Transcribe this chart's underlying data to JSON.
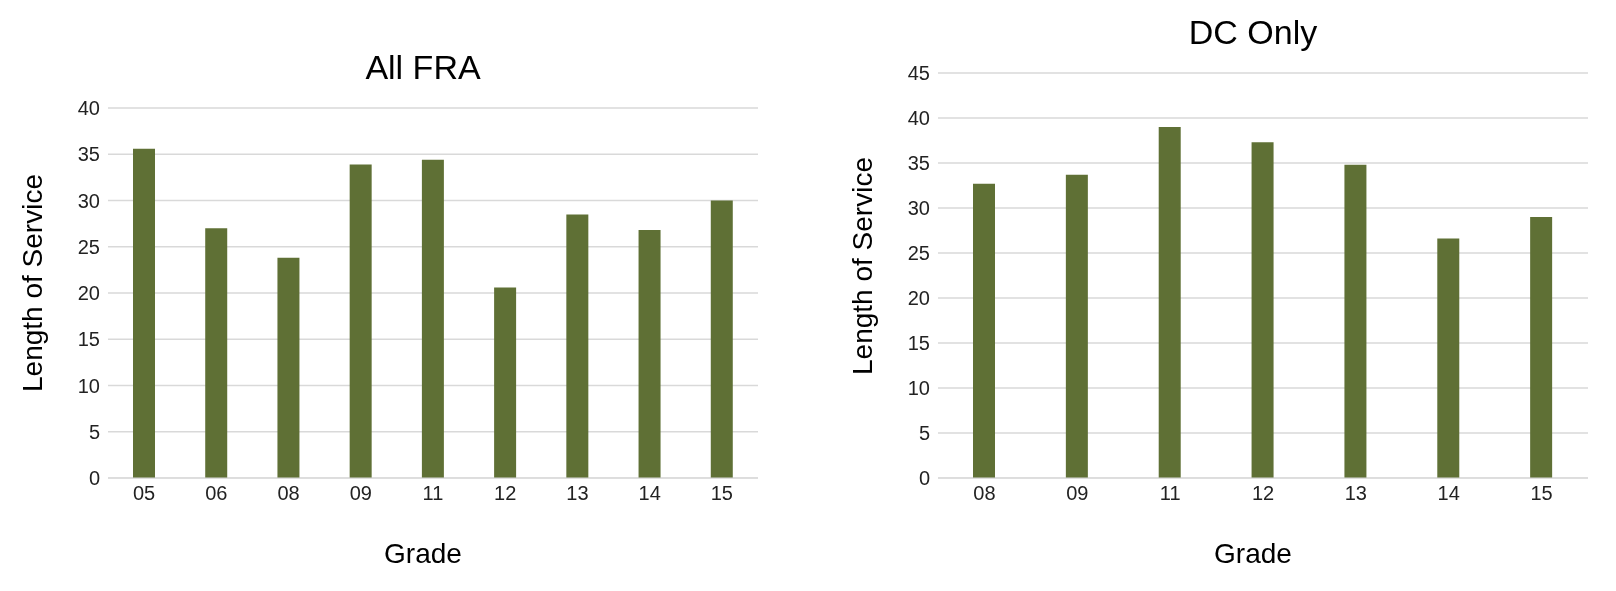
{
  "chart_data": [
    {
      "type": "bar",
      "title": "All FRA",
      "xlabel": "Grade",
      "ylabel": "Length of Service",
      "categories": [
        "05",
        "06",
        "08",
        "09",
        "11",
        "12",
        "13",
        "14",
        "15"
      ],
      "series": [
        {
          "color": "#5f7035",
          "values": [
            35.6,
            27.0,
            23.8,
            33.9,
            34.4,
            20.6,
            28.5,
            26.8,
            30.0
          ]
        }
      ],
      "ylim": [
        0,
        40
      ],
      "yticks": [
        0,
        5,
        10,
        15,
        20,
        25,
        30,
        35,
        40
      ],
      "grid": "y",
      "legend": false
    },
    {
      "type": "bar",
      "title": "DC Only",
      "xlabel": "Grade",
      "ylabel": "Length of Service",
      "categories": [
        "08",
        "09",
        "11",
        "12",
        "13",
        "14",
        "15"
      ],
      "series": [
        {
          "color": "#5f7035",
          "values": [
            32.7,
            33.7,
            39.0,
            37.3,
            34.8,
            26.6,
            29.0
          ]
        }
      ],
      "ylim": [
        0,
        45
      ],
      "yticks": [
        0,
        5,
        10,
        15,
        20,
        25,
        30,
        35,
        40,
        45
      ],
      "grid": "y",
      "legend": false
    }
  ]
}
